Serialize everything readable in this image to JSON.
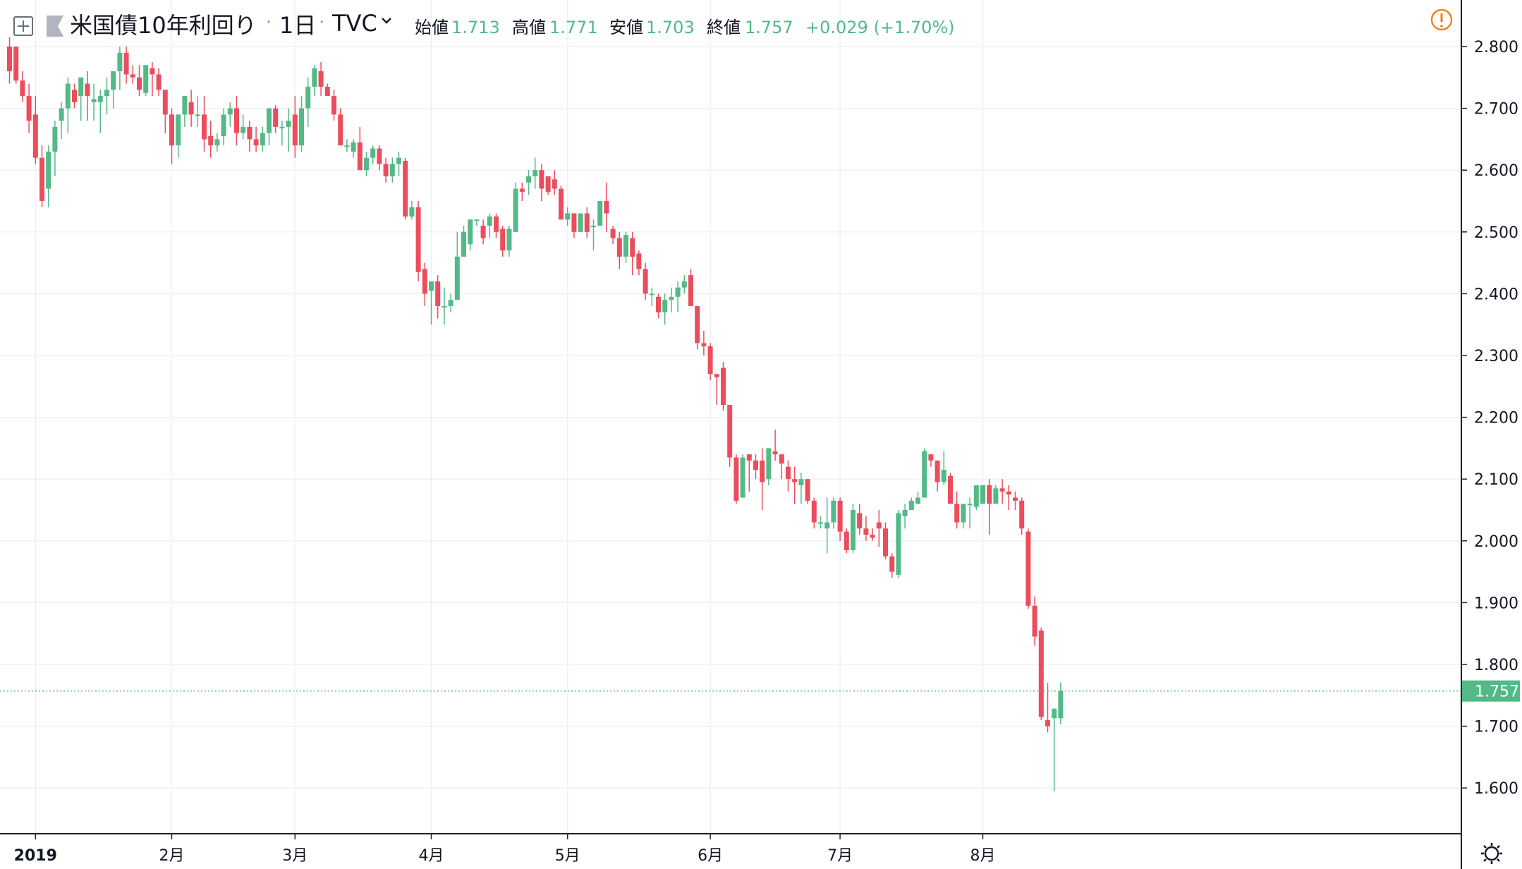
{
  "header": {
    "symbol": "米国債10年利回り",
    "dot1": "·",
    "interval": "1日",
    "dot2": "·",
    "exchange": "TVC",
    "open_label": "始値",
    "open_value": "1.713",
    "high_label": "高値",
    "high_value": "1.771",
    "low_label": "安値",
    "low_value": "1.703",
    "close_label": "終値",
    "close_value": "1.757",
    "change": "+0.029 (+1.70%)"
  },
  "price_tag": "1.757",
  "colors": {
    "up": "#53b987",
    "down": "#eb4d5c",
    "grid": "#eef1f5",
    "axis_text": "#4a4a4a",
    "header_text": "#131722",
    "alert": "#f57f17"
  },
  "chart_data": {
    "type": "candlestick",
    "ylim": [
      1.55,
      2.83
    ],
    "y_ticks": [
      "1.600",
      "1.700",
      "1.800",
      "1.900",
      "2.000",
      "2.100",
      "2.200",
      "2.300",
      "2.400",
      "2.500",
      "2.600",
      "2.700",
      "2.800"
    ],
    "x_ticks": [
      {
        "label": "2019",
        "index": 4
      },
      {
        "label": "2月",
        "index": 25
      },
      {
        "label": "3月",
        "index": 44
      },
      {
        "label": "4月",
        "index": 65
      },
      {
        "label": "5月",
        "index": 86
      },
      {
        "label": "6月",
        "index": 108
      },
      {
        "label": "7月",
        "index": 128
      },
      {
        "label": "8月",
        "index": 150
      }
    ],
    "last_close": 1.757,
    "candles": [
      [
        2.8,
        2.815,
        2.74,
        2.76
      ],
      [
        2.8,
        2.8,
        2.74,
        2.745
      ],
      [
        2.745,
        2.76,
        2.71,
        2.72
      ],
      [
        2.72,
        2.74,
        2.66,
        2.68
      ],
      [
        2.69,
        2.72,
        2.61,
        2.62
      ],
      [
        2.62,
        2.64,
        2.54,
        2.55
      ],
      [
        2.57,
        2.64,
        2.54,
        2.63
      ],
      [
        2.63,
        2.68,
        2.59,
        2.67
      ],
      [
        2.68,
        2.71,
        2.65,
        2.7
      ],
      [
        2.7,
        2.75,
        2.66,
        2.74
      ],
      [
        2.73,
        2.74,
        2.7,
        2.71
      ],
      [
        2.72,
        2.75,
        2.68,
        2.75
      ],
      [
        2.74,
        2.76,
        2.68,
        2.72
      ],
      [
        2.71,
        2.74,
        2.68,
        2.715
      ],
      [
        2.71,
        2.73,
        2.66,
        2.72
      ],
      [
        2.72,
        2.75,
        2.69,
        2.73
      ],
      [
        2.73,
        2.76,
        2.7,
        2.76
      ],
      [
        2.76,
        2.8,
        2.73,
        2.79
      ],
      [
        2.79,
        2.8,
        2.74,
        2.755
      ],
      [
        2.755,
        2.77,
        2.74,
        2.75
      ],
      [
        2.75,
        2.77,
        2.72,
        2.73
      ],
      [
        2.725,
        2.77,
        2.72,
        2.77
      ],
      [
        2.765,
        2.775,
        2.72,
        2.755
      ],
      [
        2.755,
        2.765,
        2.72,
        2.73
      ],
      [
        2.73,
        2.73,
        2.66,
        2.69
      ],
      [
        2.69,
        2.7,
        2.61,
        2.64
      ],
      [
        2.64,
        2.69,
        2.62,
        2.69
      ],
      [
        2.69,
        2.72,
        2.67,
        2.72
      ],
      [
        2.71,
        2.73,
        2.67,
        2.69
      ],
      [
        2.69,
        2.72,
        2.67,
        2.69
      ],
      [
        2.69,
        2.72,
        2.63,
        2.65
      ],
      [
        2.655,
        2.68,
        2.62,
        2.64
      ],
      [
        2.64,
        2.66,
        2.63,
        2.65
      ],
      [
        2.655,
        2.7,
        2.64,
        2.69
      ],
      [
        2.69,
        2.71,
        2.67,
        2.7
      ],
      [
        2.7,
        2.72,
        2.64,
        2.66
      ],
      [
        2.66,
        2.69,
        2.65,
        2.67
      ],
      [
        2.67,
        2.68,
        2.63,
        2.65
      ],
      [
        2.65,
        2.67,
        2.63,
        2.64
      ],
      [
        2.64,
        2.67,
        2.63,
        2.66
      ],
      [
        2.66,
        2.7,
        2.64,
        2.7
      ],
      [
        2.7,
        2.705,
        2.66,
        2.67
      ],
      [
        2.67,
        2.68,
        2.64,
        2.67
      ],
      [
        2.67,
        2.7,
        2.63,
        2.68
      ],
      [
        2.69,
        2.72,
        2.62,
        2.64
      ],
      [
        2.64,
        2.72,
        2.63,
        2.7
      ],
      [
        2.7,
        2.75,
        2.67,
        2.735
      ],
      [
        2.735,
        2.77,
        2.72,
        2.765
      ],
      [
        2.76,
        2.775,
        2.72,
        2.735
      ],
      [
        2.735,
        2.74,
        2.72,
        2.72
      ],
      [
        2.72,
        2.73,
        2.68,
        2.69
      ],
      [
        2.69,
        2.7,
        2.64,
        2.64
      ],
      [
        2.64,
        2.65,
        2.63,
        2.64
      ],
      [
        2.63,
        2.65,
        2.62,
        2.645
      ],
      [
        2.645,
        2.67,
        2.6,
        2.6
      ],
      [
        2.6,
        2.63,
        2.59,
        2.62
      ],
      [
        2.62,
        2.64,
        2.61,
        2.635
      ],
      [
        2.635,
        2.64,
        2.6,
        2.61
      ],
      [
        2.61,
        2.62,
        2.58,
        2.59
      ],
      [
        2.59,
        2.62,
        2.58,
        2.61
      ],
      [
        2.61,
        2.63,
        2.59,
        2.62
      ],
      [
        2.615,
        2.62,
        2.52,
        2.525
      ],
      [
        2.525,
        2.55,
        2.52,
        2.54
      ],
      [
        2.54,
        2.55,
        2.42,
        2.435
      ],
      [
        2.44,
        2.45,
        2.38,
        2.4
      ],
      [
        2.405,
        2.42,
        2.35,
        2.42
      ],
      [
        2.42,
        2.43,
        2.36,
        2.38
      ],
      [
        2.38,
        2.41,
        2.35,
        2.38
      ],
      [
        2.38,
        2.4,
        2.37,
        2.39
      ],
      [
        2.39,
        2.5,
        2.39,
        2.46
      ],
      [
        2.46,
        2.51,
        2.46,
        2.5
      ],
      [
        2.48,
        2.52,
        2.47,
        2.52
      ],
      [
        2.52,
        2.52,
        2.51,
        2.52
      ],
      [
        2.51,
        2.52,
        2.48,
        2.49
      ],
      [
        2.51,
        2.53,
        2.49,
        2.525
      ],
      [
        2.525,
        2.53,
        2.49,
        2.5
      ],
      [
        2.505,
        2.51,
        2.46,
        2.47
      ],
      [
        2.47,
        2.51,
        2.46,
        2.505
      ],
      [
        2.5,
        2.58,
        2.5,
        2.57
      ],
      [
        2.57,
        2.58,
        2.55,
        2.565
      ],
      [
        2.58,
        2.6,
        2.56,
        2.59
      ],
      [
        2.59,
        2.62,
        2.57,
        2.6
      ],
      [
        2.6,
        2.61,
        2.55,
        2.57
      ],
      [
        2.59,
        2.59,
        2.56,
        2.565
      ],
      [
        2.585,
        2.6,
        2.56,
        2.57
      ],
      [
        2.57,
        2.575,
        2.52,
        2.52
      ],
      [
        2.52,
        2.54,
        2.51,
        2.53
      ],
      [
        2.53,
        2.53,
        2.49,
        2.5
      ],
      [
        2.5,
        2.53,
        2.5,
        2.53
      ],
      [
        2.53,
        2.54,
        2.49,
        2.5
      ],
      [
        2.51,
        2.52,
        2.47,
        2.51
      ],
      [
        2.51,
        2.55,
        2.51,
        2.55
      ],
      [
        2.55,
        2.58,
        2.5,
        2.53
      ],
      [
        2.505,
        2.51,
        2.48,
        2.49
      ],
      [
        2.49,
        2.5,
        2.44,
        2.46
      ],
      [
        2.46,
        2.5,
        2.45,
        2.495
      ],
      [
        2.49,
        2.5,
        2.43,
        2.46
      ],
      [
        2.465,
        2.47,
        2.43,
        2.44
      ],
      [
        2.44,
        2.45,
        2.39,
        2.4
      ],
      [
        2.4,
        2.41,
        2.38,
        2.4
      ],
      [
        2.395,
        2.4,
        2.36,
        2.37
      ],
      [
        2.37,
        2.4,
        2.35,
        2.39
      ],
      [
        2.39,
        2.41,
        2.37,
        2.395
      ],
      [
        2.395,
        2.42,
        2.37,
        2.41
      ],
      [
        2.41,
        2.43,
        2.4,
        2.42
      ],
      [
        2.43,
        2.44,
        2.38,
        2.38
      ],
      [
        2.38,
        2.38,
        2.31,
        2.32
      ],
      [
        2.32,
        2.34,
        2.3,
        2.315
      ],
      [
        2.315,
        2.32,
        2.26,
        2.27
      ],
      [
        2.27,
        2.27,
        2.22,
        2.265
      ],
      [
        2.28,
        2.29,
        2.21,
        2.22
      ],
      [
        2.22,
        2.22,
        2.12,
        2.135
      ],
      [
        2.135,
        2.14,
        2.06,
        2.065
      ],
      [
        2.07,
        2.14,
        2.07,
        2.135
      ],
      [
        2.14,
        2.14,
        2.08,
        2.13
      ],
      [
        2.13,
        2.14,
        2.1,
        2.115
      ],
      [
        2.13,
        2.15,
        2.05,
        2.095
      ],
      [
        2.1,
        2.15,
        2.09,
        2.15
      ],
      [
        2.145,
        2.18,
        2.13,
        2.14
      ],
      [
        2.14,
        2.14,
        2.1,
        2.125
      ],
      [
        2.12,
        2.13,
        2.08,
        2.1
      ],
      [
        2.1,
        2.12,
        2.06,
        2.095
      ],
      [
        2.09,
        2.11,
        2.06,
        2.1
      ],
      [
        2.1,
        2.1,
        2.06,
        2.065
      ],
      [
        2.065,
        2.07,
        2.02,
        2.03
      ],
      [
        2.03,
        2.04,
        2.02,
        2.03
      ],
      [
        2.02,
        2.07,
        1.98,
        2.03
      ],
      [
        2.03,
        2.07,
        2.02,
        2.065
      ],
      [
        2.065,
        2.07,
        2.0,
        2.015
      ],
      [
        2.015,
        2.02,
        1.98,
        1.985
      ],
      [
        1.985,
        2.06,
        1.98,
        2.05
      ],
      [
        2.045,
        2.06,
        2.01,
        2.02
      ],
      [
        2.02,
        2.04,
        2.0,
        2.01
      ],
      [
        2.01,
        2.02,
        2.0,
        2.005
      ],
      [
        2.03,
        2.05,
        1.99,
        2.02
      ],
      [
        2.02,
        2.03,
        1.97,
        1.975
      ],
      [
        1.975,
        1.98,
        1.94,
        1.95
      ],
      [
        1.945,
        2.05,
        1.94,
        2.045
      ],
      [
        2.04,
        2.06,
        2.02,
        2.05
      ],
      [
        2.05,
        2.07,
        2.05,
        2.065
      ],
      [
        2.06,
        2.08,
        2.06,
        2.07
      ],
      [
        2.07,
        2.15,
        2.07,
        2.145
      ],
      [
        2.14,
        2.14,
        2.12,
        2.13
      ],
      [
        2.13,
        2.13,
        2.08,
        2.095
      ],
      [
        2.095,
        2.145,
        2.09,
        2.115
      ],
      [
        2.105,
        2.11,
        2.06,
        2.06
      ],
      [
        2.06,
        2.08,
        2.02,
        2.03
      ],
      [
        2.03,
        2.06,
        2.02,
        2.06
      ],
      [
        2.06,
        2.07,
        2.02,
        2.06
      ],
      [
        2.055,
        2.09,
        2.05,
        2.09
      ],
      [
        2.06,
        2.09,
        2.06,
        2.09
      ],
      [
        2.09,
        2.1,
        2.01,
        2.06
      ],
      [
        2.06,
        2.09,
        2.06,
        2.085
      ],
      [
        2.085,
        2.1,
        2.06,
        2.08
      ],
      [
        2.08,
        2.09,
        2.05,
        2.075
      ],
      [
        2.07,
        2.08,
        2.05,
        2.065
      ],
      [
        2.065,
        2.07,
        2.01,
        2.02
      ],
      [
        2.015,
        2.02,
        1.89,
        1.895
      ],
      [
        1.895,
        1.91,
        1.83,
        1.845
      ],
      [
        1.855,
        1.86,
        1.71,
        1.715
      ],
      [
        1.71,
        1.77,
        1.69,
        1.7
      ],
      [
        1.713,
        1.73,
        1.595,
        1.728
      ],
      [
        1.713,
        1.771,
        1.703,
        1.757
      ]
    ]
  }
}
